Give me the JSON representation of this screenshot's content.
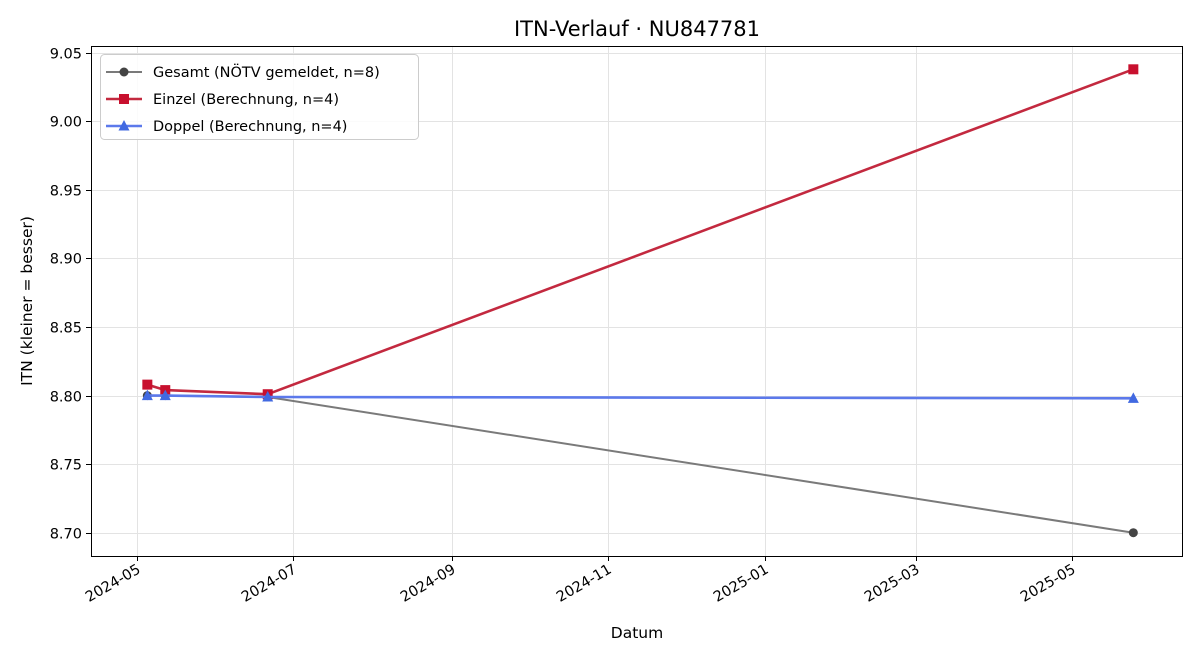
{
  "chart_data": {
    "type": "line",
    "title": "ITN-Verlauf · NU847781",
    "xlabel": "Datum",
    "ylabel": "ITN  (kleiner = besser)",
    "x_ticks": [
      "2024-05",
      "2024-07",
      "2024-09",
      "2024-11",
      "2025-01",
      "2025-03",
      "2025-05"
    ],
    "y_ticks": [
      "8.70",
      "8.75",
      "8.80",
      "8.85",
      "8.90",
      "8.95",
      "9.00",
      "9.05"
    ],
    "xlim": [
      "2024-04-13",
      "2025-06-13"
    ],
    "ylim": [
      8.683,
      9.055
    ],
    "grid": true,
    "legend_position": "top-left",
    "series": [
      {
        "name": "Gesamt (NÖTV gemeldet, n=8)",
        "color": "#7a7a7a",
        "marker_color": "#444444",
        "marker": "circle",
        "points": [
          {
            "x": "2024-05-05",
            "y": 8.8
          },
          {
            "x": "2024-05-12",
            "y": 8.8
          },
          {
            "x": "2024-06-21",
            "y": 8.799
          },
          {
            "x": "2025-05-25",
            "y": 8.7
          }
        ]
      },
      {
        "name": "Einzel (Berechnung, n=4)",
        "color": "#c3293f",
        "marker_color": "#c8102e",
        "marker": "square",
        "points": [
          {
            "x": "2024-05-05",
            "y": 8.808
          },
          {
            "x": "2024-05-12",
            "y": 8.804
          },
          {
            "x": "2024-06-21",
            "y": 8.801
          },
          {
            "x": "2025-05-25",
            "y": 9.038
          }
        ]
      },
      {
        "name": "Doppel (Berechnung, n=4)",
        "color": "#5c79eb",
        "marker_color": "#4169e1",
        "marker": "triangle",
        "points": [
          {
            "x": "2024-05-05",
            "y": 8.8
          },
          {
            "x": "2024-05-12",
            "y": 8.8
          },
          {
            "x": "2024-06-21",
            "y": 8.799
          },
          {
            "x": "2025-05-25",
            "y": 8.798
          }
        ]
      }
    ]
  }
}
